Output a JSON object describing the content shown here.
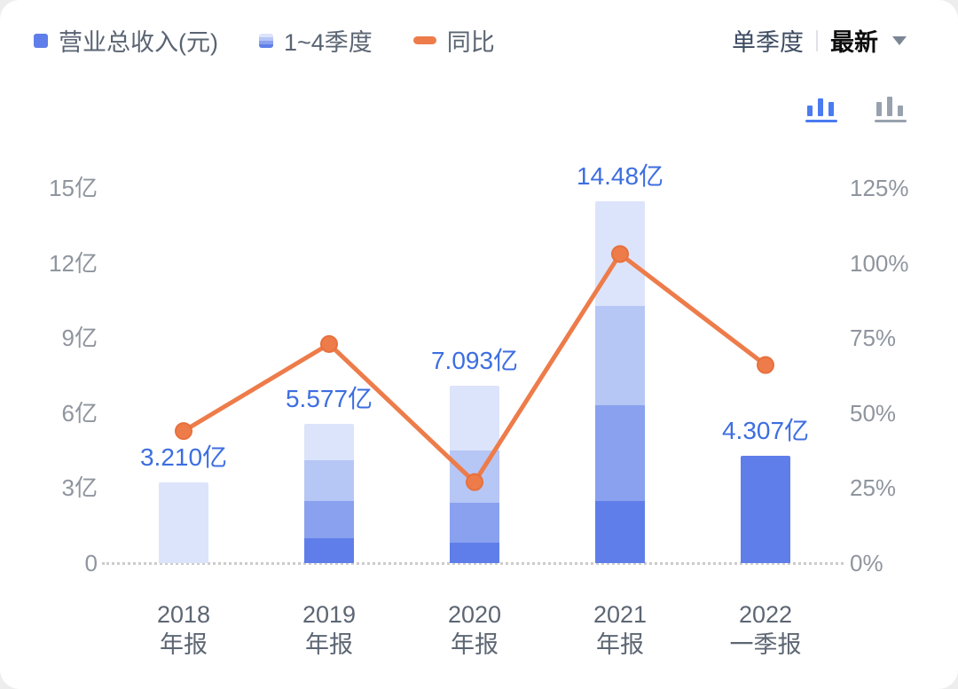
{
  "legend": {
    "revenue": {
      "label": "营业总收入(元)"
    },
    "quarters": {
      "label": "1~4季度"
    },
    "yoy": {
      "label": "同比"
    }
  },
  "controls": {
    "period": "单季度",
    "latest": "最新"
  },
  "colors": {
    "solid": "#5f7ee9",
    "q1": "#5f7ee9",
    "q2": "#89a1ee",
    "q3": "#b6c6f5",
    "q4": "#dce4fb",
    "line": "#ed7c4a",
    "line_edge": "#e8703d",
    "label": "#3d6ee0",
    "icon_active": "#4a7bf0",
    "icon_inactive": "#98a2ae"
  },
  "chart_data": {
    "type": "bar",
    "subtype": "stacked-bars-with-yoy-line",
    "title": "营业总收入(元)",
    "left_axis": {
      "labels": [
        "0",
        "3亿",
        "6亿",
        "9亿",
        "12亿",
        "15亿"
      ],
      "max": 15,
      "unit": "亿"
    },
    "right_axis": {
      "labels": [
        "0%",
        "25%",
        "50%",
        "75%",
        "100%",
        "125%"
      ],
      "max": 125,
      "unit": "%"
    },
    "categories": [
      {
        "line1": "2018",
        "line2": "年报"
      },
      {
        "line1": "2019",
        "line2": "年报"
      },
      {
        "line1": "2020",
        "line2": "年报"
      },
      {
        "line1": "2021",
        "line2": "年报"
      },
      {
        "line1": "2022",
        "line2": "一季报"
      }
    ],
    "bars": [
      {
        "total": 3.21,
        "label": "3.210亿",
        "segments": [
          {
            "value": 3.21,
            "color": "q4"
          }
        ]
      },
      {
        "total": 5.577,
        "label": "5.577亿",
        "segments": [
          {
            "value": 1.0,
            "color": "q1"
          },
          {
            "value": 1.5,
            "color": "q2"
          },
          {
            "value": 1.6,
            "color": "q3"
          },
          {
            "value": 1.477,
            "color": "q4"
          }
        ]
      },
      {
        "total": 7.093,
        "label": "7.093亿",
        "segments": [
          {
            "value": 0.8,
            "color": "q1"
          },
          {
            "value": 1.6,
            "color": "q2"
          },
          {
            "value": 2.1,
            "color": "q3"
          },
          {
            "value": 2.593,
            "color": "q4"
          }
        ]
      },
      {
        "total": 14.48,
        "label": "14.48亿",
        "segments": [
          {
            "value": 2.5,
            "color": "q1"
          },
          {
            "value": 3.8,
            "color": "q2"
          },
          {
            "value": 4.0,
            "color": "q3"
          },
          {
            "value": 4.18,
            "color": "q4"
          }
        ]
      },
      {
        "total": 4.307,
        "label": "4.307亿",
        "segments": [
          {
            "value": 4.307,
            "color": "q1"
          }
        ]
      }
    ],
    "line_series": {
      "name": "同比",
      "unit": "%",
      "values": [
        44,
        73,
        27,
        103,
        66
      ]
    }
  }
}
